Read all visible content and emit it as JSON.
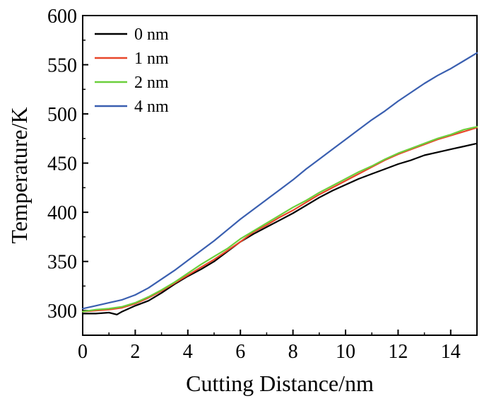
{
  "chart_data": {
    "type": "line",
    "title": "",
    "xlabel": "Cutting Distance/nm",
    "ylabel": "Temperature/K",
    "xlim": [
      0,
      15
    ],
    "ylim": [
      275,
      600
    ],
    "xticks": [
      0,
      2,
      4,
      6,
      8,
      10,
      12,
      14
    ],
    "yticks": [
      300,
      350,
      400,
      450,
      500,
      550,
      600
    ],
    "grid": false,
    "legend_position": "top-left",
    "series": [
      {
        "name": "0 nm",
        "color": "#000000",
        "x": [
          0,
          0.5,
          1,
          1.3,
          1.5,
          2,
          2.5,
          3,
          3.5,
          4,
          4.5,
          5,
          5.5,
          6,
          6.5,
          7,
          7.5,
          8,
          8.5,
          9,
          9.5,
          10,
          10.5,
          11,
          11.5,
          12,
          12.5,
          13,
          13.5,
          14,
          14.5,
          15
        ],
        "y": [
          297,
          297,
          298,
          296,
          299,
          305,
          310,
          318,
          327,
          335,
          342,
          350,
          360,
          370,
          378,
          385,
          392,
          399,
          407,
          415,
          422,
          428,
          434,
          439,
          444,
          449,
          453,
          458,
          461,
          464,
          467,
          470
        ]
      },
      {
        "name": "1 nm",
        "color": "#e8472a",
        "x": [
          0,
          0.5,
          1,
          1.5,
          2,
          2.5,
          3,
          3.5,
          4,
          4.5,
          5,
          5.5,
          6,
          6.5,
          7,
          7.5,
          8,
          8.5,
          9,
          9.5,
          10,
          10.5,
          11,
          11.5,
          12,
          12.5,
          13,
          13.5,
          14,
          14.5,
          15
        ],
        "y": [
          299,
          300,
          301,
          303,
          307,
          313,
          320,
          328,
          336,
          344,
          352,
          361,
          370,
          380,
          387,
          395,
          402,
          410,
          418,
          425,
          432,
          439,
          446,
          453,
          459,
          464,
          469,
          474,
          478,
          482,
          486
        ]
      },
      {
        "name": "2 nm",
        "color": "#6ccf3c",
        "x": [
          0,
          0.5,
          1,
          1.5,
          2,
          2.5,
          3,
          3.5,
          4,
          4.5,
          5,
          5.5,
          6,
          6.5,
          7,
          7.5,
          8,
          8.5,
          9,
          9.5,
          10,
          10.5,
          11,
          11.5,
          12,
          12.5,
          13,
          13.5,
          14,
          14.5,
          15
        ],
        "y": [
          299,
          301,
          302,
          304,
          308,
          314,
          321,
          329,
          338,
          347,
          355,
          363,
          373,
          381,
          389,
          397,
          405,
          412,
          420,
          427,
          434,
          441,
          447,
          454,
          460,
          465,
          470,
          475,
          479,
          484,
          487
        ]
      },
      {
        "name": "4 nm",
        "color": "#3a5fb0",
        "x": [
          0,
          0.5,
          1,
          1.5,
          2,
          2.5,
          3,
          3.5,
          4,
          4.5,
          5,
          5.5,
          6,
          6.5,
          7,
          7.5,
          8,
          8.5,
          9,
          9.5,
          10,
          10.5,
          11,
          11.5,
          12,
          12.5,
          13,
          13.5,
          14,
          14.5,
          15
        ],
        "y": [
          302,
          305,
          308,
          311,
          316,
          323,
          332,
          341,
          351,
          361,
          371,
          382,
          393,
          403,
          413,
          423,
          433,
          444,
          454,
          464,
          474,
          484,
          494,
          503,
          513,
          522,
          531,
          539,
          546,
          554,
          562
        ]
      }
    ]
  }
}
